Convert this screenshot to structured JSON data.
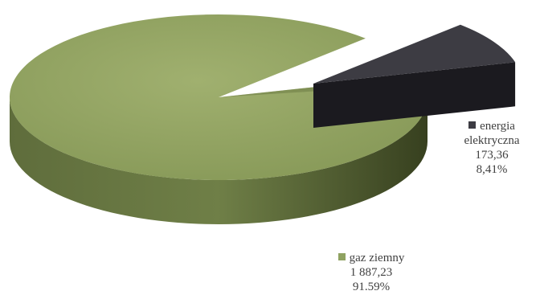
{
  "chart_data": {
    "type": "pie",
    "style": "3d-exploded",
    "slices": [
      {
        "name": "gaz ziemny",
        "value": 1887.23,
        "value_label": "1 887,23",
        "percent_label": "91.59%",
        "color": "#8fa261"
      },
      {
        "name": "energia elektryczna",
        "name_lines": [
          "energia",
          "elektryczna"
        ],
        "value": 173.36,
        "value_label": "173,36",
        "percent_label": "8,41%",
        "color": "#3d3c43"
      }
    ],
    "legend": "inline-labels"
  }
}
